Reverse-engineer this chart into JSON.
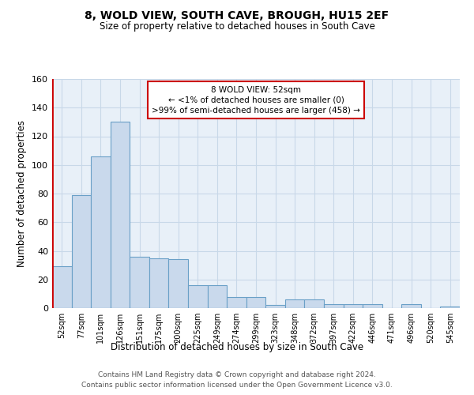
{
  "title": "8, WOLD VIEW, SOUTH CAVE, BROUGH, HU15 2EF",
  "subtitle": "Size of property relative to detached houses in South Cave",
  "xlabel": "Distribution of detached houses by size in South Cave",
  "ylabel": "Number of detached properties",
  "categories": [
    "52sqm",
    "77sqm",
    "101sqm",
    "126sqm",
    "151sqm",
    "175sqm",
    "200sqm",
    "225sqm",
    "249sqm",
    "274sqm",
    "299sqm",
    "323sqm",
    "348sqm",
    "372sqm",
    "397sqm",
    "422sqm",
    "446sqm",
    "471sqm",
    "496sqm",
    "520sqm",
    "545sqm"
  ],
  "values": [
    29,
    79,
    106,
    130,
    36,
    35,
    34,
    16,
    16,
    8,
    8,
    2,
    6,
    6,
    3,
    3,
    3,
    0,
    3,
    0,
    1
  ],
  "bar_color": "#c9d9ec",
  "bar_edge_color": "#6aa0c7",
  "highlight_line_color": "#cc0000",
  "ylim": [
    0,
    160
  ],
  "yticks": [
    0,
    20,
    40,
    60,
    80,
    100,
    120,
    140,
    160
  ],
  "annotation_line1": "8 WOLD VIEW: 52sqm",
  "annotation_line2": "← <1% of detached houses are smaller (0)",
  "annotation_line3": ">99% of semi-detached houses are larger (458) →",
  "annotation_box_color": "#ffffff",
  "annotation_box_edge": "#cc0000",
  "grid_color": "#c8d8e8",
  "bg_color": "#e8f0f8",
  "footer_line1": "Contains HM Land Registry data © Crown copyright and database right 2024.",
  "footer_line2": "Contains public sector information licensed under the Open Government Licence v3.0."
}
